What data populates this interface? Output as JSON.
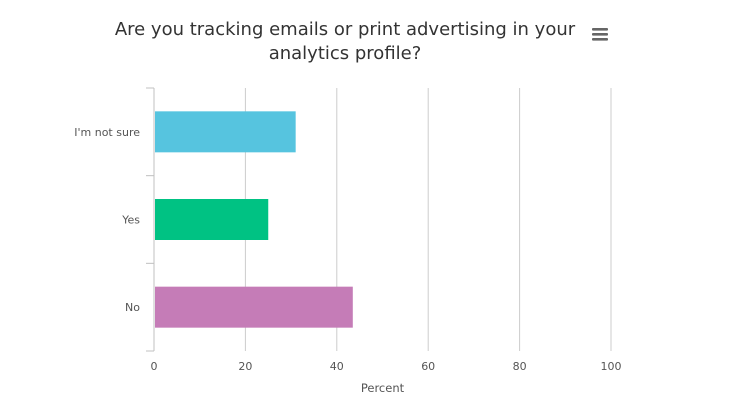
{
  "chart_data": {
    "type": "bar",
    "orientation": "horizontal",
    "title": "Are you tracking emails or print advertising in your analytics profile?",
    "categories": [
      "I'm not sure",
      "Yes",
      "No"
    ],
    "values": [
      31,
      25,
      43.5
    ],
    "colors": [
      "#56c4df",
      "#00c283",
      "#c57cb7"
    ],
    "xlabel": "Percent",
    "ylabel": "",
    "xlim": [
      0,
      100
    ],
    "xticks": [
      0,
      20,
      40,
      60,
      80,
      100
    ],
    "grid": "vertical"
  },
  "menu": {
    "icon": "hamburger-menu-icon"
  }
}
